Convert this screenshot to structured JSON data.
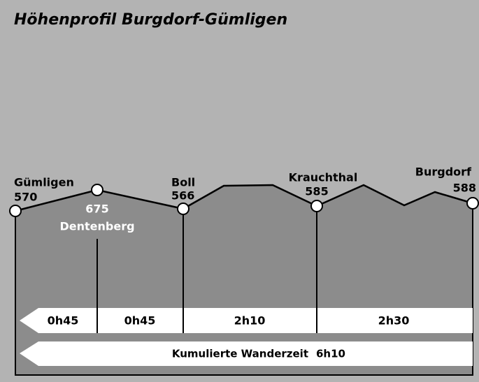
{
  "title": "Höhenprofil Burgdorf-Gümligen",
  "stations": [
    {
      "name": "Gümligen",
      "elevation": 570
    },
    {
      "name": "Dentenberg",
      "elevation": 675
    },
    {
      "name": "Boll",
      "elevation": 566
    },
    {
      "name": "Krauchthal",
      "elevation": 585
    },
    {
      "name": "Burgdorf",
      "elevation": 588
    }
  ],
  "segments": [
    "0h45",
    "0h45",
    "2h10",
    "2h30"
  ],
  "total": {
    "label": "Kumulierte Wanderzeit",
    "time": "6h10"
  }
}
